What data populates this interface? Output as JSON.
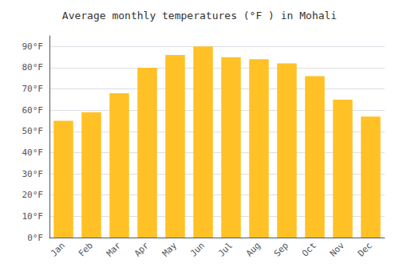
{
  "chart_data": {
    "type": "bar",
    "title": "Average monthly temperatures (°F ) in Mohali",
    "categories": [
      "Jan",
      "Feb",
      "Mar",
      "Apr",
      "May",
      "Jun",
      "Jul",
      "Aug",
      "Sep",
      "Oct",
      "Nov",
      "Dec"
    ],
    "values": [
      55,
      59,
      68,
      80,
      86,
      90,
      85,
      84,
      82,
      76,
      65,
      57
    ],
    "color": "#FFC125",
    "ylim": [
      0,
      95
    ],
    "yticks": [
      {
        "value": 0,
        "label": "0°F"
      },
      {
        "value": 10,
        "label": "10°F"
      },
      {
        "value": 20,
        "label": "20°F"
      },
      {
        "value": 30,
        "label": "30°F"
      },
      {
        "value": 40,
        "label": "40°F"
      },
      {
        "value": 50,
        "label": "50°F"
      },
      {
        "value": 60,
        "label": "60°F"
      },
      {
        "value": 70,
        "label": "70°F"
      },
      {
        "value": 80,
        "label": "80°F"
      },
      {
        "value": 90,
        "label": "90°F"
      }
    ],
    "grid": true
  }
}
